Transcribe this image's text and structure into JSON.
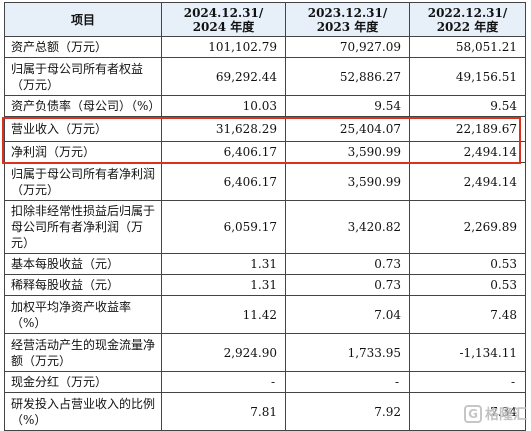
{
  "header": {
    "item": "项目",
    "col_2024_line1": "2024.12.31/",
    "col_2024_line2": "2024 年度",
    "col_2023_line1": "2023.12.31/",
    "col_2023_line2": "2023 年度",
    "col_2022_line1": "2022.12.31/",
    "col_2022_line2": "2022 年度"
  },
  "rows": [
    {
      "label": "资产总额（万元）",
      "v2024": "101,102.79",
      "v2023": "70,927.09",
      "v2022": "58,051.21"
    },
    {
      "label": "归属于母公司所有者权益（万元）",
      "v2024": "69,292.44",
      "v2023": "52,886.27",
      "v2022": "49,156.51"
    },
    {
      "label": "资产负债率（母公司）（%）",
      "v2024": "10.03",
      "v2023": "9.54",
      "v2022": "9.54"
    },
    {
      "label": "营业收入（万元）",
      "v2024": "31,628.29",
      "v2023": "25,404.07",
      "v2022": "22,189.67"
    },
    {
      "label": "净利润（万元）",
      "v2024": "6,406.17",
      "v2023": "3,590.99",
      "v2022": "2,494.14"
    },
    {
      "label": "归属于母公司所有者净利润（万元）",
      "v2024": "6,406.17",
      "v2023": "3,590.99",
      "v2022": "2,494.14"
    },
    {
      "label": "扣除非经常性损益后归属于母公司所有者净利润（万元）",
      "v2024": "6,059.17",
      "v2023": "3,420.82",
      "v2022": "2,269.89"
    },
    {
      "label": "基本每股收益（元）",
      "v2024": "1.31",
      "v2023": "0.73",
      "v2022": "0.53"
    },
    {
      "label": "稀释每股收益（元）",
      "v2024": "1.31",
      "v2023": "0.73",
      "v2022": "0.53"
    },
    {
      "label": "加权平均净资产收益率（%）",
      "v2024": "11.42",
      "v2023": "7.04",
      "v2022": "7.48"
    },
    {
      "label": "经营活动产生的现金流量净额（万元）",
      "v2024": "2,924.90",
      "v2023": "1,733.95",
      "v2022": "-1,134.11"
    },
    {
      "label": "现金分红（万元）",
      "v2024": "-",
      "v2023": "-",
      "v2022": "-"
    },
    {
      "label": "研发投入占营业收入的比例（%）",
      "v2024": "7.81",
      "v2023": "7.92",
      "v2022": "7.34"
    }
  ],
  "highlight_color": "#d9331f",
  "header_bg": "#e7f0f9",
  "watermark": {
    "icon": "gelonghui-logo-icon",
    "text": "格隆汇"
  }
}
